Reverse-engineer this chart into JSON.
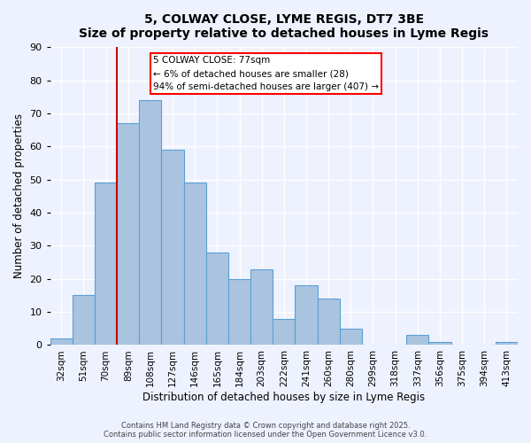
{
  "title": "5, COLWAY CLOSE, LYME REGIS, DT7 3BE",
  "subtitle": "Size of property relative to detached houses in Lyme Regis",
  "xlabel": "Distribution of detached houses by size in Lyme Regis",
  "ylabel": "Number of detached properties",
  "bar_labels": [
    "32sqm",
    "51sqm",
    "70sqm",
    "89sqm",
    "108sqm",
    "127sqm",
    "146sqm",
    "165sqm",
    "184sqm",
    "203sqm",
    "222sqm",
    "241sqm",
    "260sqm",
    "280sqm",
    "299sqm",
    "318sqm",
    "337sqm",
    "356sqm",
    "375sqm",
    "394sqm",
    "413sqm"
  ],
  "bar_values": [
    2,
    15,
    49,
    67,
    74,
    59,
    49,
    28,
    20,
    23,
    8,
    18,
    14,
    5,
    0,
    0,
    3,
    1,
    0,
    0,
    1
  ],
  "bar_color": "#aac4e0",
  "bar_edge_color": "#5a9fd4",
  "ylim": [
    0,
    90
  ],
  "yticks": [
    0,
    10,
    20,
    30,
    40,
    50,
    60,
    70,
    80,
    90
  ],
  "vline_index": 2,
  "vline_color": "#cc0000",
  "annotation_title": "5 COLWAY CLOSE: 77sqm",
  "annotation_line1": "← 6% of detached houses are smaller (28)",
  "annotation_line2": "94% of semi-detached houses are larger (407) →",
  "footer1": "Contains HM Land Registry data © Crown copyright and database right 2025.",
  "footer2": "Contains public sector information licensed under the Open Government Licence v3.0.",
  "background_color": "#eef2ff",
  "plot_bg_color": "#eef2ff"
}
